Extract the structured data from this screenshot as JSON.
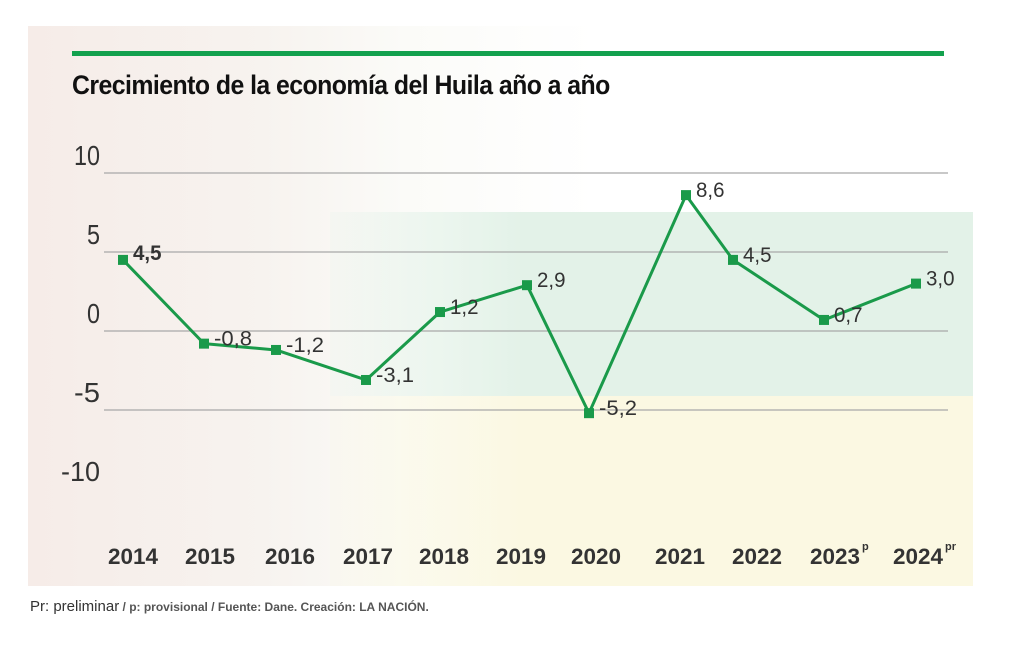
{
  "chart_data": {
    "type": "line",
    "title": "Crecimiento de la economía del Huila año a año",
    "categories": [
      "2014",
      "2015",
      "2016",
      "2017",
      "2018",
      "2019",
      "2020",
      "2021",
      "2022",
      "2023",
      "2024"
    ],
    "category_superscripts": [
      "",
      "",
      "",
      "",
      "",
      "",
      "",
      "",
      "",
      "p",
      "pr"
    ],
    "values": [
      4.5,
      -0.8,
      -1.2,
      -3.1,
      1.2,
      2.9,
      -5.2,
      8.6,
      4.5,
      0.7,
      3.0
    ],
    "data_labels": [
      "4,5",
      "-0,8",
      "-1,2",
      "-3,1",
      "1,2",
      "2,9",
      "-5,2",
      "8,6",
      "4,5",
      "0,7",
      "3,0"
    ],
    "yticks": [
      "10",
      "5",
      "0",
      "-5",
      "-10"
    ],
    "ylim": [
      -10,
      10
    ],
    "grid": true,
    "line_color": "#1a9a4a",
    "accent_color": "#13a14e"
  },
  "footer": {
    "main": "Pr: preliminar",
    "rest": " / p: provisional / Fuente: Dane. Creación: LA NACIÓN."
  }
}
